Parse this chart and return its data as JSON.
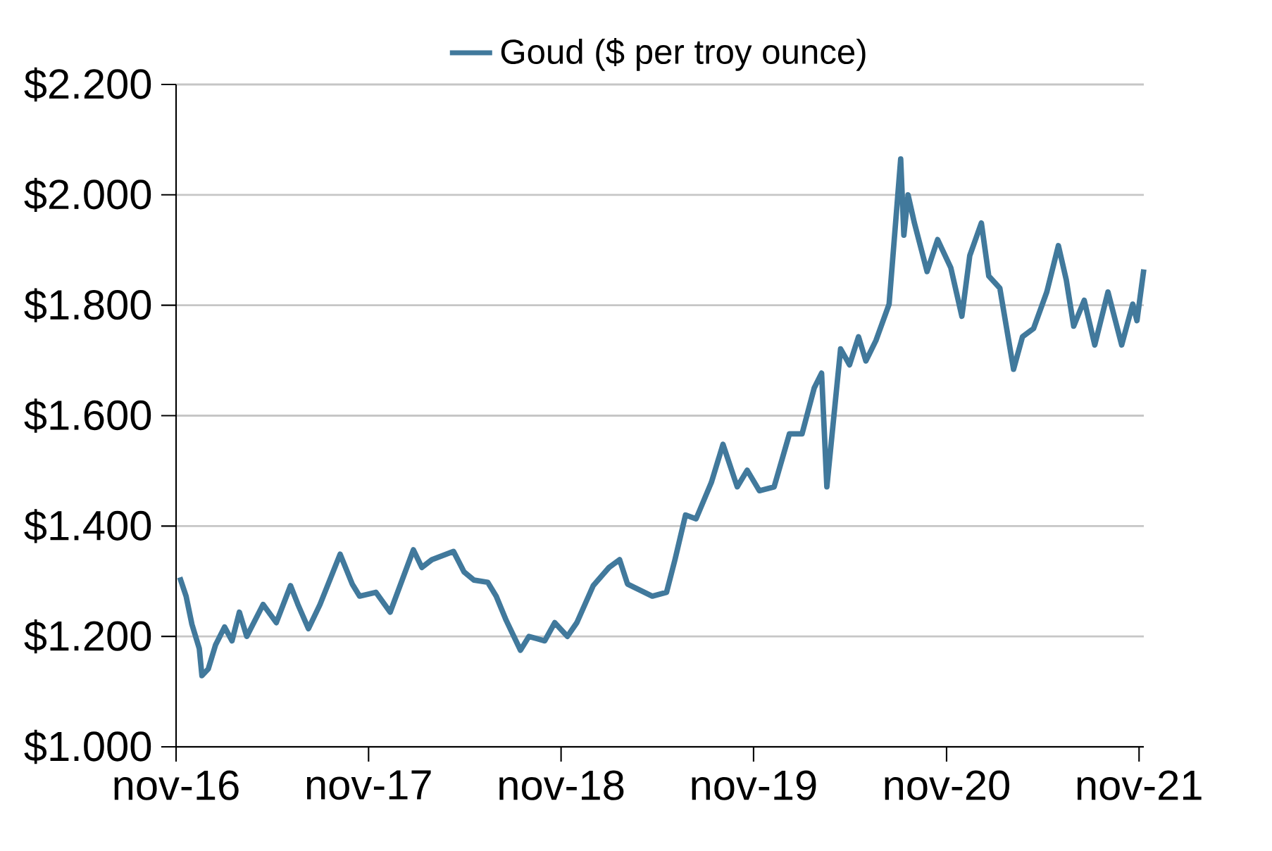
{
  "chart_data": {
    "type": "line",
    "legend": "top",
    "grid": "y",
    "line_style": "solid",
    "x": [
      "2016-11-08",
      "2016-11-20",
      "2016-12-01",
      "2016-12-15",
      "2016-12-20",
      "2017-01-01",
      "2017-01-15",
      "2017-02-01",
      "2017-02-15",
      "2017-03-01",
      "2017-03-15",
      "2017-04-15",
      "2017-05-10",
      "2017-06-06",
      "2017-06-20",
      "2017-07-10",
      "2017-08-01",
      "2017-09-08",
      "2017-10-01",
      "2017-10-15",
      "2017-11-15",
      "2017-12-12",
      "2018-01-25",
      "2018-02-10",
      "2018-03-01",
      "2018-04-11",
      "2018-05-01",
      "2018-05-20",
      "2018-06-15",
      "2018-07-01",
      "2018-07-20",
      "2018-08-16",
      "2018-09-01",
      "2018-10-01",
      "2018-10-20",
      "2018-11-13",
      "2018-12-01",
      "2019-01-01",
      "2019-01-31",
      "2019-02-20",
      "2019-03-07",
      "2019-04-23",
      "2019-05-20",
      "2019-06-05",
      "2019-06-25",
      "2019-07-15",
      "2019-08-13",
      "2019-09-04",
      "2019-10-01",
      "2019-10-20",
      "2019-11-12",
      "2019-12-10",
      "2020-01-08",
      "2020-02-01",
      "2020-02-24",
      "2020-03-09",
      "2020-03-19",
      "2020-04-14",
      "2020-05-01",
      "2020-05-18",
      "2020-06-01",
      "2020-06-20",
      "2020-07-15",
      "2020-08-06",
      "2020-08-12",
      "2020-08-20",
      "2020-09-01",
      "2020-09-25",
      "2020-10-15",
      "2020-11-09",
      "2020-11-30",
      "2020-12-15",
      "2021-01-06",
      "2021-01-20",
      "2021-02-10",
      "2021-03-08",
      "2021-03-25",
      "2021-04-15",
      "2021-05-10",
      "2021-06-01",
      "2021-06-16",
      "2021-06-30",
      "2021-07-20",
      "2021-08-09",
      "2021-09-03",
      "2021-09-29",
      "2021-10-20",
      "2021-10-28",
      "2021-11-10"
    ],
    "series": [
      {
        "name": "Goud ($ per troy ounce)",
        "color": "#41799c",
        "values": [
          1307,
          1273,
          1222,
          1178,
          1129,
          1141,
          1185,
          1217,
          1192,
          1244,
          1200,
          1258,
          1225,
          1292,
          1258,
          1214,
          1258,
          1349,
          1295,
          1273,
          1280,
          1244,
          1357,
          1325,
          1339,
          1354,
          1317,
          1302,
          1298,
          1273,
          1229,
          1175,
          1200,
          1192,
          1225,
          1200,
          1225,
          1292,
          1325,
          1339,
          1295,
          1273,
          1280,
          1339,
          1420,
          1413,
          1479,
          1548,
          1471,
          1501,
          1464,
          1471,
          1567,
          1567,
          1650,
          1677,
          1471,
          1721,
          1692,
          1743,
          1699,
          1736,
          1802,
          2065,
          1927,
          2000,
          1949,
          1861,
          1919,
          1868,
          1780,
          1890,
          1949,
          1853,
          1831,
          1684,
          1743,
          1758,
          1824,
          1908,
          1846,
          1762,
          1809,
          1728,
          1824,
          1728,
          1802,
          1772,
          1865
        ]
      }
    ],
    "xlim": [
      "2016-11-01",
      "2021-11-10"
    ],
    "xticks": [
      {
        "value": "2016-11-01",
        "label": "nov-16"
      },
      {
        "value": "2017-11-01",
        "label": "nov-17"
      },
      {
        "value": "2018-11-01",
        "label": "nov-18"
      },
      {
        "value": "2019-11-01",
        "label": "nov-19"
      },
      {
        "value": "2020-11-01",
        "label": "nov-20"
      },
      {
        "value": "2021-11-01",
        "label": "nov-21"
      }
    ],
    "ylim": [
      1000,
      2200
    ],
    "yticks": [
      {
        "value": 1000,
        "label": "$1.000"
      },
      {
        "value": 1200,
        "label": "$1.200"
      },
      {
        "value": 1400,
        "label": "$1.400"
      },
      {
        "value": 1600,
        "label": "$1.600"
      },
      {
        "value": 1800,
        "label": "$1.800"
      },
      {
        "value": 2000,
        "label": "$2.000"
      },
      {
        "value": 2200,
        "label": "$2.200"
      }
    ]
  }
}
